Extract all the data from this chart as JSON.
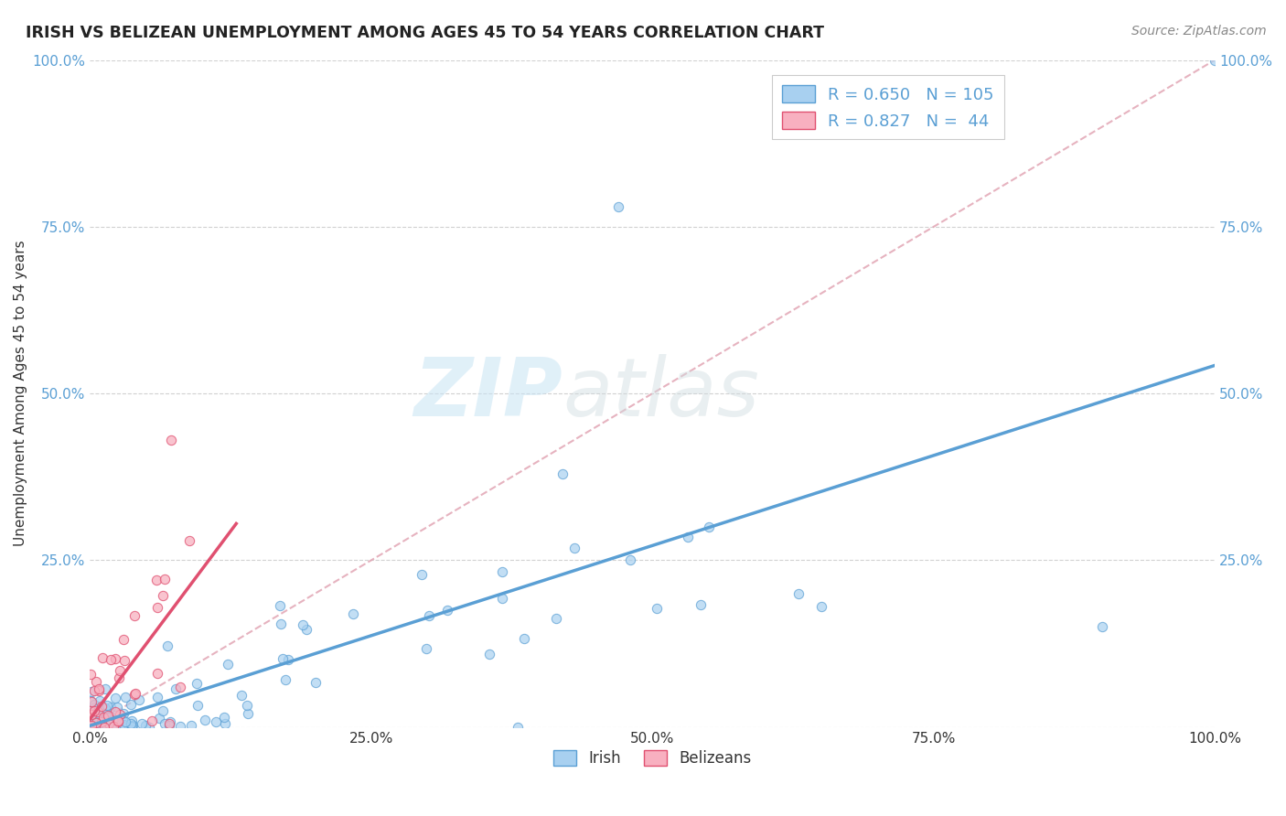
{
  "title": "IRISH VS BELIZEAN UNEMPLOYMENT AMONG AGES 45 TO 54 YEARS CORRELATION CHART",
  "source": "Source: ZipAtlas.com",
  "ylabel_label": "Unemployment Among Ages 45 to 54 years",
  "xlim": [
    0,
    1.0
  ],
  "ylim": [
    0,
    1.0
  ],
  "xtick_labels": [
    "0.0%",
    "25.0%",
    "50.0%",
    "75.0%",
    "100.0%"
  ],
  "ytick_labels_left": [
    "",
    "25.0%",
    "50.0%",
    "75.0%",
    "100.0%"
  ],
  "ytick_labels_right": [
    "",
    "25.0%",
    "50.0%",
    "75.0%",
    "100.0%"
  ],
  "irish_color": "#a8d0f0",
  "irish_edge": "#5a9fd4",
  "belizean_color": "#f8b0c0",
  "belizean_edge": "#e05070",
  "irish_R": 0.65,
  "irish_N": 105,
  "belizean_R": 0.827,
  "belizean_N": 44,
  "watermark_zip": "ZIP",
  "watermark_atlas": "atlas",
  "background_color": "#ffffff",
  "grid_color": "#cccccc",
  "irish_trend_color": "#5a9fd4",
  "belizean_trend_color": "#e05070",
  "ref_line_color": "#e0a0b0",
  "tick_color": "#5a9fd4",
  "legend_text_color": "#5a9fd4"
}
